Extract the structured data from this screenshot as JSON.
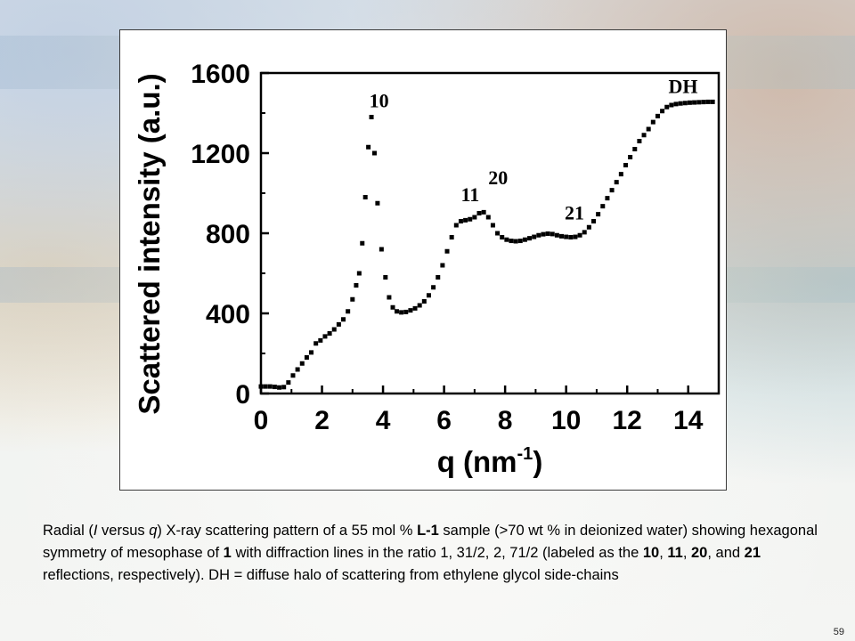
{
  "chart_data": {
    "type": "scatter",
    "title": "",
    "xlabel_base": "q (nm",
    "xlabel_sup": "-1",
    "xlabel_close": ")",
    "ylabel": "Scattered intensity (a.u.)",
    "xlim": [
      0,
      15
    ],
    "ylim": [
      0,
      1600
    ],
    "xticks": [
      0,
      2,
      4,
      6,
      8,
      10,
      12,
      14
    ],
    "yticks": [
      0,
      400,
      800,
      1200,
      1600
    ],
    "grid": false,
    "series": [
      {
        "x": [
          0.0,
          0.15,
          0.3,
          0.45,
          0.6,
          0.75,
          0.9,
          1.05,
          1.2,
          1.35,
          1.5,
          1.65,
          1.8,
          1.95,
          2.1,
          2.25,
          2.4,
          2.55,
          2.7,
          2.85,
          3.0,
          3.12,
          3.22,
          3.32,
          3.42,
          3.52,
          3.62,
          3.72,
          3.82,
          3.95,
          4.08,
          4.2,
          4.32,
          4.45,
          4.6,
          4.75,
          4.9,
          5.05,
          5.2,
          5.35,
          5.5,
          5.65,
          5.8,
          5.95,
          6.1,
          6.25,
          6.4,
          6.55,
          6.7,
          6.85,
          7.0,
          7.15,
          7.3,
          7.45,
          7.6,
          7.75,
          7.9,
          8.05,
          8.2,
          8.35,
          8.5,
          8.65,
          8.8,
          8.95,
          9.1,
          9.25,
          9.4,
          9.55,
          9.7,
          9.85,
          10.0,
          10.15,
          10.3,
          10.45,
          10.6,
          10.75,
          10.9,
          11.05,
          11.2,
          11.35,
          11.5,
          11.65,
          11.8,
          11.95,
          12.1,
          12.25,
          12.4,
          12.55,
          12.7,
          12.85,
          13.0,
          13.15,
          13.3,
          13.45,
          13.6,
          13.75,
          13.9,
          14.05,
          14.2,
          14.35,
          14.5,
          14.65,
          14.8
        ],
        "y": [
          35,
          35,
          35,
          33,
          30,
          32,
          55,
          90,
          120,
          150,
          180,
          205,
          250,
          265,
          285,
          300,
          320,
          345,
          370,
          410,
          470,
          540,
          600,
          750,
          980,
          1230,
          1380,
          1200,
          950,
          720,
          580,
          480,
          430,
          410,
          405,
          407,
          415,
          425,
          440,
          460,
          490,
          530,
          580,
          640,
          710,
          780,
          840,
          860,
          865,
          870,
          880,
          900,
          905,
          880,
          840,
          800,
          780,
          768,
          762,
          760,
          762,
          768,
          775,
          782,
          790,
          795,
          798,
          796,
          790,
          785,
          782,
          780,
          782,
          790,
          805,
          830,
          860,
          895,
          935,
          975,
          1015,
          1055,
          1095,
          1140,
          1180,
          1220,
          1260,
          1290,
          1320,
          1355,
          1385,
          1410,
          1430,
          1440,
          1445,
          1448,
          1450,
          1452,
          1453,
          1454,
          1455,
          1456,
          1456
        ]
      }
    ],
    "annotations": [
      {
        "text": "10",
        "x": 3.55,
        "y": 1430
      },
      {
        "text": "11",
        "x": 6.55,
        "y": 960
      },
      {
        "text": "20",
        "x": 7.45,
        "y": 1045
      },
      {
        "text": "21",
        "x": 9.95,
        "y": 870
      },
      {
        "text": "DH",
        "x": 13.35,
        "y": 1500
      }
    ]
  },
  "caption": {
    "segments": [
      {
        "text": "Radial (",
        "style": "normal"
      },
      {
        "text": "I",
        "style": "italic"
      },
      {
        "text": " versus ",
        "style": "normal"
      },
      {
        "text": "q",
        "style": "italic"
      },
      {
        "text": ") X-ray scattering pattern of a 55 mol % ",
        "style": "normal"
      },
      {
        "text": "L-1",
        "style": "bold"
      },
      {
        "text": " sample (>70 wt % in deionized water) showing hexagonal symmetry of mesophase of ",
        "style": "normal"
      },
      {
        "text": "1",
        "style": "bold"
      },
      {
        "text": " with diffraction lines in the ratio 1, 31/2, 2, 71/2 (labeled as the ",
        "style": "normal"
      },
      {
        "text": "10",
        "style": "bold"
      },
      {
        "text": ", ",
        "style": "normal"
      },
      {
        "text": "11",
        "style": "bold"
      },
      {
        "text": ", ",
        "style": "normal"
      },
      {
        "text": "20",
        "style": "bold"
      },
      {
        "text": ", and ",
        "style": "normal"
      },
      {
        "text": "21",
        "style": "bold"
      },
      {
        "text": " reflections, respectively). DH = diffuse halo of scattering from ethylene glycol side-chains",
        "style": "normal"
      }
    ]
  },
  "page_number": "59"
}
